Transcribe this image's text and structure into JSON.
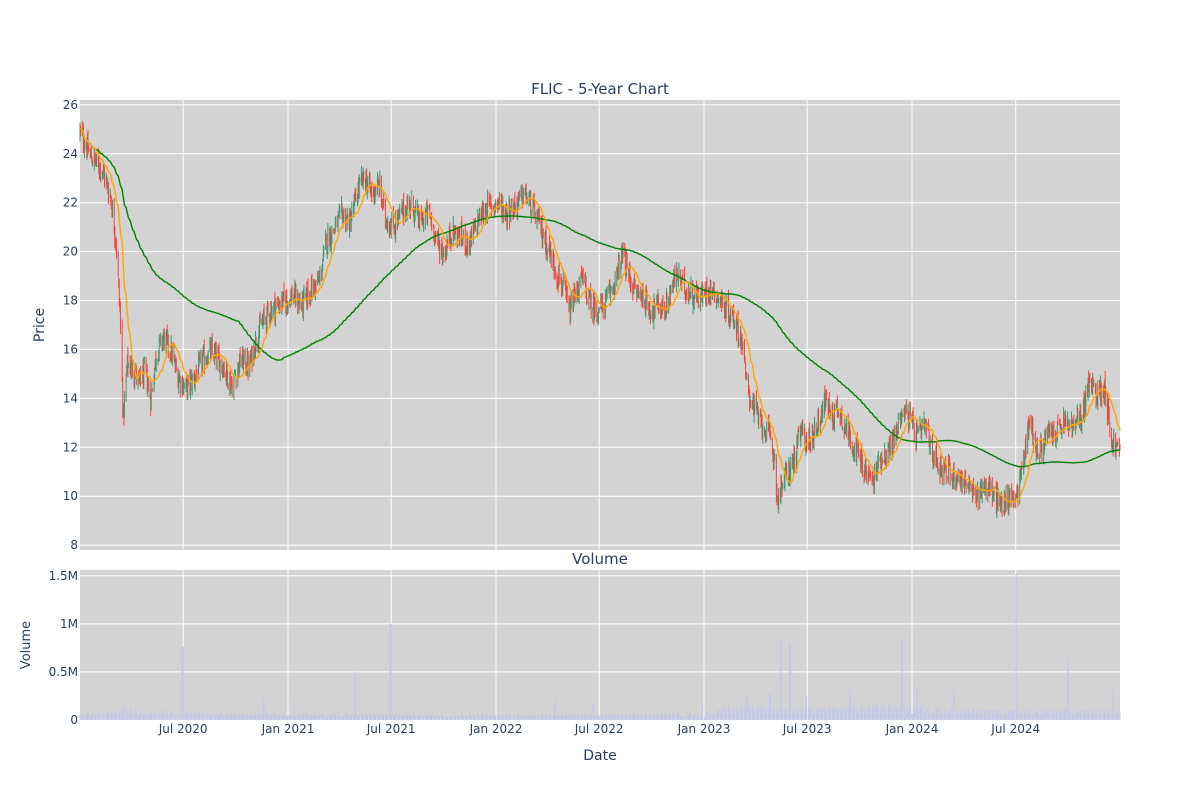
{
  "chart_data": [
    {
      "type": "candlestick",
      "title": "FLIC - 5-Year Chart",
      "xlabel": "",
      "ylabel": "Price",
      "ylim": [
        7.8,
        26.2
      ],
      "yticks": [
        8,
        10,
        12,
        14,
        16,
        18,
        20,
        22,
        24,
        26
      ],
      "xlim": [
        "2020-01-02",
        "2024-12-31"
      ],
      "grid": true,
      "candle_colors": {
        "up": "#3d9970",
        "down": "#ff4136"
      },
      "price_path": [
        [
          "2020-01-02",
          24.9
        ],
        [
          "2020-01-20",
          23.9
        ],
        [
          "2020-02-10",
          23.4
        ],
        [
          "2020-02-25",
          22.2
        ],
        [
          "2020-03-05",
          20.5
        ],
        [
          "2020-03-12",
          17.6
        ],
        [
          "2020-03-18",
          13.2
        ],
        [
          "2020-03-25",
          15.4
        ],
        [
          "2020-04-05",
          15.2
        ],
        [
          "2020-04-15",
          14.6
        ],
        [
          "2020-04-25",
          15.1
        ],
        [
          "2020-05-05",
          14.0
        ],
        [
          "2020-05-15",
          15.8
        ],
        [
          "2020-05-28",
          16.5
        ],
        [
          "2020-06-10",
          15.9
        ],
        [
          "2020-06-20",
          15.0
        ],
        [
          "2020-07-05",
          14.4
        ],
        [
          "2020-07-20",
          14.8
        ],
        [
          "2020-08-05",
          15.6
        ],
        [
          "2020-08-20",
          15.9
        ],
        [
          "2020-09-10",
          15.3
        ],
        [
          "2020-09-25",
          14.5
        ],
        [
          "2020-10-10",
          15.6
        ],
        [
          "2020-10-25",
          15.3
        ],
        [
          "2020-11-05",
          16.3
        ],
        [
          "2020-11-15",
          17.0
        ],
        [
          "2020-12-01",
          17.6
        ],
        [
          "2020-12-20",
          17.9
        ],
        [
          "2021-01-10",
          18.2
        ],
        [
          "2021-01-25",
          17.8
        ],
        [
          "2021-02-10",
          18.4
        ],
        [
          "2021-02-25",
          18.8
        ],
        [
          "2021-03-10",
          20.5
        ],
        [
          "2021-03-20",
          20.8
        ],
        [
          "2021-04-05",
          21.5
        ],
        [
          "2021-04-20",
          21.2
        ],
        [
          "2021-05-05",
          22.6
        ],
        [
          "2021-05-15",
          23.0
        ],
        [
          "2021-05-28",
          22.4
        ],
        [
          "2021-06-10",
          22.7
        ],
        [
          "2021-06-20",
          21.4
        ],
        [
          "2021-07-05",
          21.0
        ],
        [
          "2021-07-20",
          21.6
        ],
        [
          "2021-08-05",
          22.0
        ],
        [
          "2021-08-20",
          21.2
        ],
        [
          "2021-09-05",
          21.6
        ],
        [
          "2021-09-20",
          20.4
        ],
        [
          "2021-10-01",
          19.9
        ],
        [
          "2021-10-15",
          20.8
        ],
        [
          "2021-11-01",
          20.6
        ],
        [
          "2021-11-15",
          20.3
        ],
        [
          "2021-12-01",
          21.3
        ],
        [
          "2021-12-15",
          21.8
        ],
        [
          "2022-01-05",
          22.0
        ],
        [
          "2022-01-20",
          21.6
        ],
        [
          "2022-02-05",
          21.9
        ],
        [
          "2022-02-20",
          22.4
        ],
        [
          "2022-03-05",
          21.8
        ],
        [
          "2022-03-20",
          21.0
        ],
        [
          "2022-04-05",
          20.0
        ],
        [
          "2022-04-15",
          19.3
        ],
        [
          "2022-04-28",
          18.6
        ],
        [
          "2022-05-10",
          17.5
        ],
        [
          "2022-05-20",
          18.2
        ],
        [
          "2022-06-01",
          18.9
        ],
        [
          "2022-06-15",
          17.9
        ],
        [
          "2022-06-25",
          17.6
        ],
        [
          "2022-07-10",
          17.8
        ],
        [
          "2022-07-20",
          18.3
        ],
        [
          "2022-08-01",
          19.0
        ],
        [
          "2022-08-10",
          19.9
        ],
        [
          "2022-08-20",
          19.2
        ],
        [
          "2022-09-01",
          18.4
        ],
        [
          "2022-09-15",
          18.2
        ],
        [
          "2022-09-30",
          17.6
        ],
        [
          "2022-10-15",
          17.8
        ],
        [
          "2022-10-25",
          17.6
        ],
        [
          "2022-11-05",
          18.5
        ],
        [
          "2022-11-15",
          19.1
        ],
        [
          "2022-11-25",
          18.6
        ],
        [
          "2022-12-10",
          18.3
        ],
        [
          "2022-12-25",
          18.1
        ],
        [
          "2023-01-10",
          18.5
        ],
        [
          "2023-01-25",
          18.2
        ],
        [
          "2023-02-10",
          17.6
        ],
        [
          "2023-02-25",
          17.2
        ],
        [
          "2023-03-10",
          16.2
        ],
        [
          "2023-03-15",
          14.8
        ],
        [
          "2023-03-25",
          13.9
        ],
        [
          "2023-04-10",
          13.0
        ],
        [
          "2023-04-25",
          12.5
        ],
        [
          "2023-05-05",
          11.5
        ],
        [
          "2023-05-10",
          9.8
        ],
        [
          "2023-05-20",
          10.6
        ],
        [
          "2023-06-05",
          11.3
        ],
        [
          "2023-06-20",
          12.6
        ],
        [
          "2023-07-05",
          12.2
        ],
        [
          "2023-07-20",
          13.0
        ],
        [
          "2023-08-01",
          13.9
        ],
        [
          "2023-08-15",
          13.3
        ],
        [
          "2023-08-25",
          13.6
        ],
        [
          "2023-09-10",
          12.6
        ],
        [
          "2023-09-25",
          11.9
        ],
        [
          "2023-10-10",
          11.0
        ],
        [
          "2023-10-25",
          10.6
        ],
        [
          "2023-11-05",
          11.5
        ],
        [
          "2023-11-20",
          11.8
        ],
        [
          "2023-12-05",
          12.6
        ],
        [
          "2023-12-15",
          13.6
        ],
        [
          "2023-12-28",
          13.2
        ],
        [
          "2024-01-10",
          12.4
        ],
        [
          "2024-01-25",
          12.9
        ],
        [
          "2024-02-05",
          11.8
        ],
        [
          "2024-02-20",
          11.2
        ],
        [
          "2024-03-05",
          11.0
        ],
        [
          "2024-03-20",
          10.8
        ],
        [
          "2024-04-05",
          10.6
        ],
        [
          "2024-04-20",
          9.9
        ],
        [
          "2024-05-05",
          10.5
        ],
        [
          "2024-05-20",
          10.2
        ],
        [
          "2024-06-05",
          9.6
        ],
        [
          "2024-06-20",
          9.9
        ],
        [
          "2024-07-05",
          10.2
        ],
        [
          "2024-07-15",
          11.6
        ],
        [
          "2024-07-25",
          13.1
        ],
        [
          "2024-08-10",
          11.7
        ],
        [
          "2024-08-25",
          12.5
        ],
        [
          "2024-09-10",
          12.6
        ],
        [
          "2024-09-25",
          13.0
        ],
        [
          "2024-10-10",
          12.8
        ],
        [
          "2024-10-25",
          13.3
        ],
        [
          "2024-11-06",
          14.6
        ],
        [
          "2024-11-20",
          14.2
        ],
        [
          "2024-12-05",
          14.5
        ],
        [
          "2024-12-15",
          12.3
        ],
        [
          "2024-12-31",
          11.8
        ]
      ],
      "moving_averages": [
        {
          "color": "#ffa500",
          "window_days": 20
        },
        {
          "color": "#008000",
          "window_days": 200
        }
      ]
    },
    {
      "type": "bar",
      "title": "Volume",
      "xlabel": "Date",
      "ylabel": "Volume",
      "ylim": [
        0,
        1560000
      ],
      "ytick_values": [
        0,
        500000,
        1000000,
        1500000
      ],
      "ytick_labels": [
        "0",
        "0.5M",
        "1M",
        "1.5M"
      ],
      "xtick_dates": [
        "2020-07-01",
        "2021-01-01",
        "2021-07-01",
        "2022-01-01",
        "2022-07-01",
        "2023-01-01",
        "2023-07-01",
        "2024-01-01",
        "2024-07-01"
      ],
      "xtick_labels": [
        "Jul 2020",
        "Jan 2021",
        "Jul 2021",
        "Jan 2022",
        "Jul 2022",
        "Jan 2023",
        "Jul 2023",
        "Jan 2024",
        "Jul 2024"
      ],
      "bar_color": "#c5c9e8",
      "baseline_by_period": [
        [
          "2020-01-02",
          60000
        ],
        [
          "2020-04-01",
          90000
        ],
        [
          "2020-09-01",
          60000
        ],
        [
          "2021-01-01",
          55000
        ],
        [
          "2022-01-01",
          45000
        ],
        [
          "2023-01-01",
          60000
        ],
        [
          "2023-03-15",
          140000
        ],
        [
          "2023-06-01",
          90000
        ],
        [
          "2023-12-01",
          130000
        ],
        [
          "2024-03-01",
          100000
        ],
        [
          "2024-06-01",
          80000
        ],
        [
          "2024-12-31",
          90000
        ]
      ],
      "spikes": [
        [
          "2020-03-20",
          180000
        ],
        [
          "2020-06-30",
          760000
        ],
        [
          "2020-11-20",
          220000
        ],
        [
          "2021-01-10",
          200000
        ],
        [
          "2021-04-30",
          500000
        ],
        [
          "2021-06-30",
          1000000
        ],
        [
          "2022-04-15",
          200000
        ],
        [
          "2022-06-20",
          160000
        ],
        [
          "2022-12-30",
          180000
        ],
        [
          "2023-03-17",
          260000
        ],
        [
          "2023-04-27",
          280000
        ],
        [
          "2023-05-15",
          830000
        ],
        [
          "2023-06-01",
          800000
        ],
        [
          "2023-06-30",
          250000
        ],
        [
          "2023-09-15",
          300000
        ],
        [
          "2023-12-15",
          840000
        ],
        [
          "2024-01-10",
          320000
        ],
        [
          "2024-03-15",
          310000
        ],
        [
          "2024-07-01",
          1510000
        ],
        [
          "2024-09-30",
          630000
        ],
        [
          "2024-12-20",
          320000
        ]
      ]
    }
  ]
}
